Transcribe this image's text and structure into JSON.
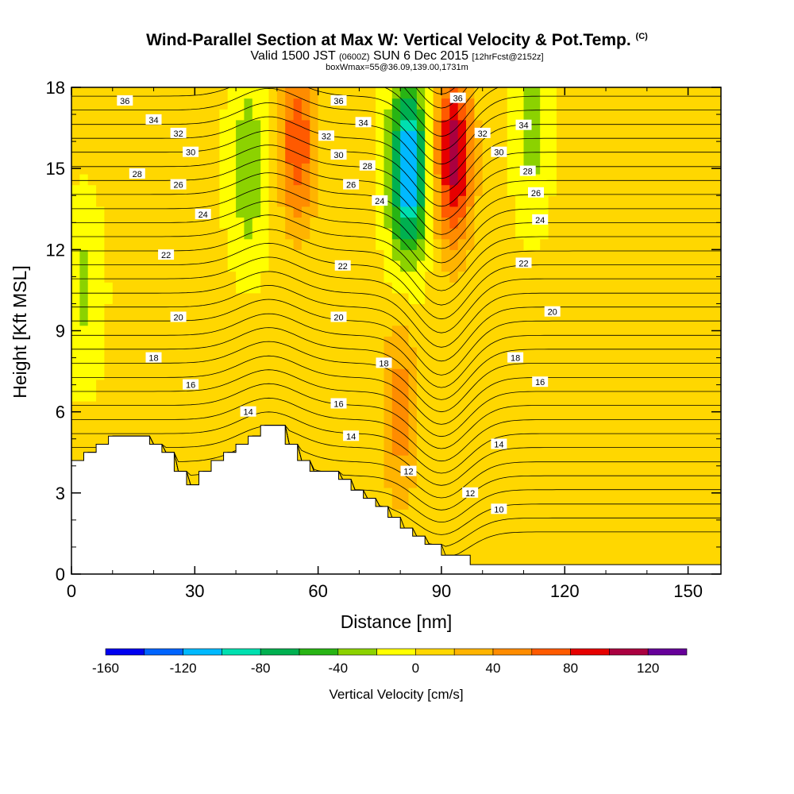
{
  "title": {
    "main": "Wind-Parallel Section at Max W: Vertical Velocity & Pot.Temp.",
    "copyright": "(C)",
    "valid_prefix": "Valid 1500 JST",
    "valid_utc": "(0600Z)",
    "valid_date": "SUN 6 Dec 2015",
    "forecast": "[12hrFcst@2152z]",
    "box": "boxWmax=55@36.09,139.00,1731m"
  },
  "chart_data": {
    "type": "heatmap",
    "xlabel": "Distance [nm]",
    "ylabel": "Height [Kft MSL]",
    "xlim": [
      0,
      158
    ],
    "ylim": [
      0,
      18
    ],
    "x_ticks": [
      0,
      30,
      60,
      90,
      120,
      150
    ],
    "y_ticks": [
      0,
      3,
      6,
      9,
      12,
      15,
      18
    ],
    "terrain_kft": [
      [
        0,
        4.2
      ],
      [
        3,
        4.2
      ],
      [
        3,
        4.5
      ],
      [
        6,
        4.5
      ],
      [
        6,
        4.8
      ],
      [
        9,
        4.8
      ],
      [
        9,
        5.1
      ],
      [
        19,
        5.1
      ],
      [
        19,
        4.8
      ],
      [
        22,
        4.8
      ],
      [
        22,
        4.5
      ],
      [
        25,
        4.5
      ],
      [
        25,
        3.8
      ],
      [
        28,
        3.8
      ],
      [
        28,
        3.3
      ],
      [
        31,
        3.3
      ],
      [
        31,
        3.8
      ],
      [
        34,
        3.8
      ],
      [
        34,
        4.2
      ],
      [
        37,
        4.2
      ],
      [
        37,
        4.5
      ],
      [
        40,
        4.5
      ],
      [
        40,
        4.8
      ],
      [
        43,
        4.8
      ],
      [
        43,
        5.1
      ],
      [
        46,
        5.1
      ],
      [
        46,
        5.5
      ],
      [
        52,
        5.5
      ],
      [
        52,
        4.8
      ],
      [
        55,
        4.8
      ],
      [
        55,
        4.2
      ],
      [
        58,
        4.2
      ],
      [
        58,
        3.8
      ],
      [
        65,
        3.8
      ],
      [
        65,
        3.5
      ],
      [
        68,
        3.5
      ],
      [
        68,
        3.1
      ],
      [
        71,
        3.1
      ],
      [
        71,
        2.8
      ],
      [
        74,
        2.8
      ],
      [
        74,
        2.5
      ],
      [
        77,
        2.5
      ],
      [
        77,
        2.1
      ],
      [
        80,
        2.1
      ],
      [
        80,
        1.7
      ],
      [
        83,
        1.7
      ],
      [
        83,
        1.4
      ],
      [
        86,
        1.4
      ],
      [
        86,
        1.1
      ],
      [
        90,
        1.1
      ],
      [
        90,
        0.7
      ],
      [
        97,
        0.7
      ],
      [
        97,
        0.35
      ],
      [
        158,
        0.35
      ]
    ],
    "theta_isentropes": [
      10,
      12,
      14,
      16,
      18,
      20,
      22,
      24,
      26,
      28,
      30,
      32,
      34,
      36
    ],
    "colorbar": {
      "title": "Vertical Velocity [cm/s]",
      "tick_labels": [
        "-160",
        "-120",
        "-80",
        "-40",
        "0",
        "40",
        "80",
        "120"
      ],
      "tick_values": [
        -160,
        -120,
        -80,
        -40,
        0,
        40,
        80,
        120
      ],
      "range": [
        -160,
        140
      ],
      "step": 20,
      "colors": [
        "#0000f0",
        "#0064ff",
        "#00b9ff",
        "#00e0b0",
        "#00b050",
        "#28b414",
        "#8cd200",
        "#ffff00",
        "#ffd700",
        "#ffb400",
        "#ff8c00",
        "#ff5a00",
        "#e60000",
        "#aa0040",
        "#660099"
      ]
    },
    "velocity_features": [
      {
        "x": 3,
        "z": 10.5,
        "w": -30
      },
      {
        "x": 20,
        "z": 14,
        "w": 15
      },
      {
        "x": 43,
        "z": 15,
        "w": -45
      },
      {
        "x": 55,
        "z": 16,
        "w": 70
      },
      {
        "x": 82,
        "z": 15,
        "w": -130
      },
      {
        "x": 80,
        "z": 6,
        "w": 50
      },
      {
        "x": 93,
        "z": 15.5,
        "w": 110
      },
      {
        "x": 112,
        "z": 16.5,
        "w": -35
      },
      {
        "x": 150,
        "z": 14,
        "w": 15
      }
    ],
    "contour_labels": [
      {
        "v": "36",
        "x": 13,
        "z": 17.5
      },
      {
        "v": "34",
        "x": 20,
        "z": 16.8
      },
      {
        "v": "32",
        "x": 26,
        "z": 16.3
      },
      {
        "v": "30",
        "x": 29,
        "z": 15.6
      },
      {
        "v": "28",
        "x": 16,
        "z": 14.8
      },
      {
        "v": "26",
        "x": 26,
        "z": 14.4
      },
      {
        "v": "24",
        "x": 32,
        "z": 13.3
      },
      {
        "v": "22",
        "x": 23,
        "z": 11.8
      },
      {
        "v": "20",
        "x": 26,
        "z": 9.5
      },
      {
        "v": "18",
        "x": 20,
        "z": 8.0
      },
      {
        "v": "16",
        "x": 29,
        "z": 7.0
      },
      {
        "v": "14",
        "x": 43,
        "z": 6.0
      },
      {
        "v": "36",
        "x": 65,
        "z": 17.5
      },
      {
        "v": "34",
        "x": 71,
        "z": 16.7
      },
      {
        "v": "32",
        "x": 62,
        "z": 16.2
      },
      {
        "v": "30",
        "x": 65,
        "z": 15.5
      },
      {
        "v": "28",
        "x": 72,
        "z": 15.1
      },
      {
        "v": "26",
        "x": 68,
        "z": 14.4
      },
      {
        "v": "24",
        "x": 75,
        "z": 13.8
      },
      {
        "v": "22",
        "x": 66,
        "z": 11.4
      },
      {
        "v": "20",
        "x": 65,
        "z": 9.5
      },
      {
        "v": "18",
        "x": 76,
        "z": 7.8
      },
      {
        "v": "16",
        "x": 65,
        "z": 6.3
      },
      {
        "v": "14",
        "x": 68,
        "z": 5.1
      },
      {
        "v": "12",
        "x": 82,
        "z": 3.8
      },
      {
        "v": "36",
        "x": 94,
        "z": 17.6
      },
      {
        "v": "32",
        "x": 100,
        "z": 16.3
      },
      {
        "v": "30",
        "x": 104,
        "z": 15.6
      },
      {
        "v": "34",
        "x": 110,
        "z": 16.6
      },
      {
        "v": "28",
        "x": 111,
        "z": 14.9
      },
      {
        "v": "26",
        "x": 113,
        "z": 14.1
      },
      {
        "v": "24",
        "x": 114,
        "z": 13.1
      },
      {
        "v": "22",
        "x": 110,
        "z": 11.5
      },
      {
        "v": "20",
        "x": 117,
        "z": 9.7
      },
      {
        "v": "18",
        "x": 108,
        "z": 8.0
      },
      {
        "v": "16",
        "x": 114,
        "z": 7.1
      },
      {
        "v": "14",
        "x": 104,
        "z": 4.8
      },
      {
        "v": "12",
        "x": 97,
        "z": 3.0
      },
      {
        "v": "10",
        "x": 104,
        "z": 2.4
      }
    ]
  }
}
